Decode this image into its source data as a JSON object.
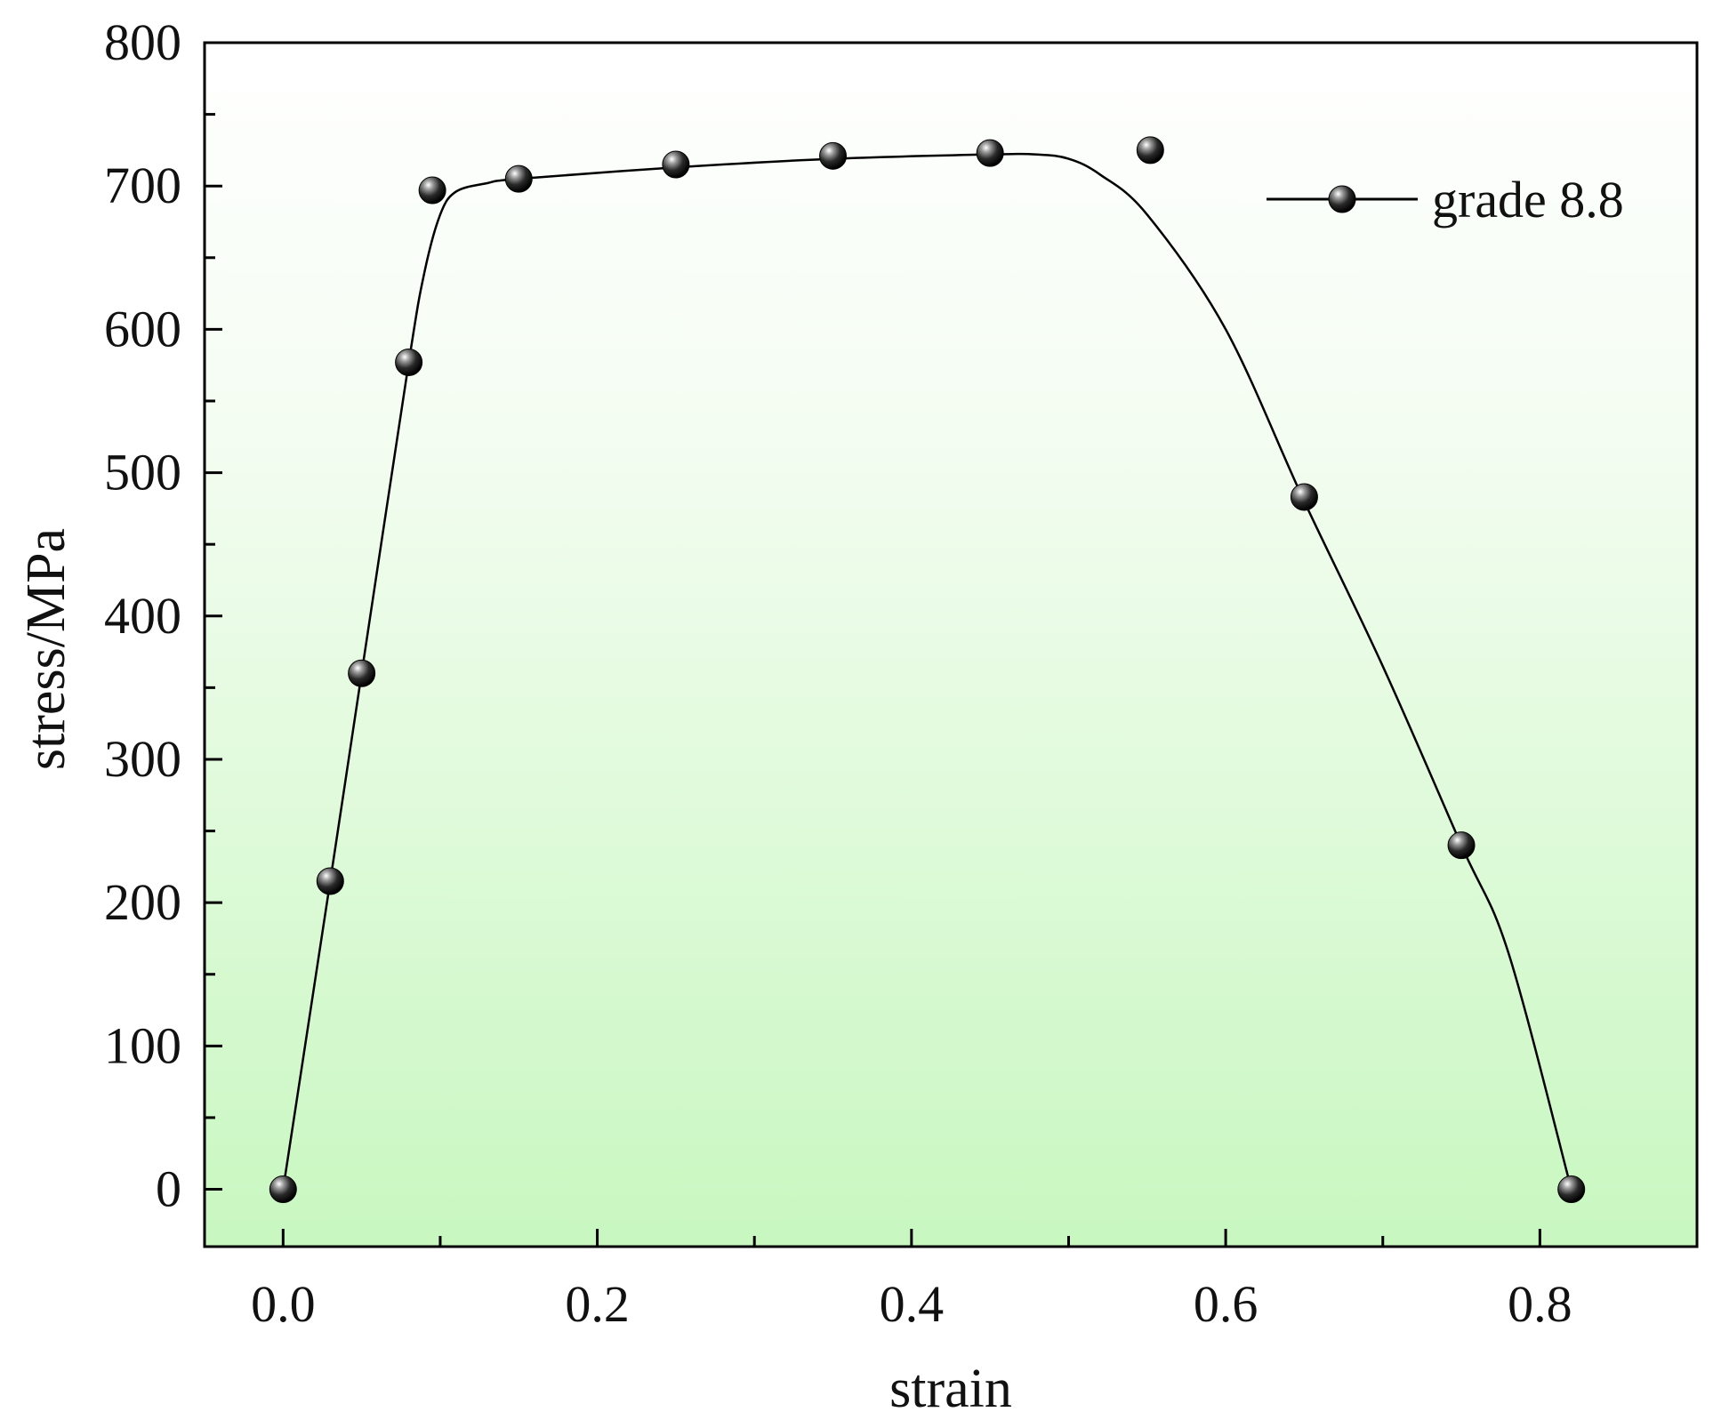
{
  "chart_data": {
    "type": "line",
    "xlabel": "strain",
    "ylabel": "stress/MPa",
    "xlim": [
      -0.05,
      0.9
    ],
    "ylim": [
      -40,
      800
    ],
    "x_ticks": [
      0.0,
      0.2,
      0.4,
      0.6,
      0.8
    ],
    "x_tick_labels": [
      "0.0",
      "0.2",
      "0.4",
      "0.6",
      "0.8"
    ],
    "y_ticks": [
      0,
      100,
      200,
      300,
      400,
      500,
      600,
      700,
      800
    ],
    "y_tick_labels": [
      "0",
      "100",
      "200",
      "300",
      "400",
      "500",
      "600",
      "700",
      "800"
    ],
    "x_minor_step": 0.1,
    "y_minor_step": 50,
    "grid": false,
    "legend_position": "top-right",
    "background": "vertical gradient white to light green",
    "colors": {
      "line": "#000000",
      "marker": "#111111",
      "bg_top": "#ffffff",
      "bg_bottom": "#c8f7c0"
    },
    "series": [
      {
        "name": "grade 8.8",
        "x": [
          0.0,
          0.03,
          0.05,
          0.08,
          0.095,
          0.15,
          0.25,
          0.35,
          0.45,
          0.552,
          0.65,
          0.75,
          0.82
        ],
        "y": [
          0,
          215,
          360,
          577,
          697,
          705,
          715,
          721,
          723,
          725,
          483,
          240,
          0
        ]
      }
    ],
    "fitted_curve": {
      "x": [
        0.0,
        0.03,
        0.05,
        0.08,
        0.09,
        0.1,
        0.11,
        0.13,
        0.15,
        0.25,
        0.35,
        0.45,
        0.48,
        0.5,
        0.52,
        0.55,
        0.6,
        0.65,
        0.7,
        0.75,
        0.78,
        0.82
      ],
      "y": [
        0,
        215,
        360,
        577,
        640,
        680,
        696,
        702,
        705,
        713,
        719,
        722,
        722,
        719,
        708,
        680,
        600,
        480,
        365,
        240,
        165,
        0
      ]
    }
  }
}
